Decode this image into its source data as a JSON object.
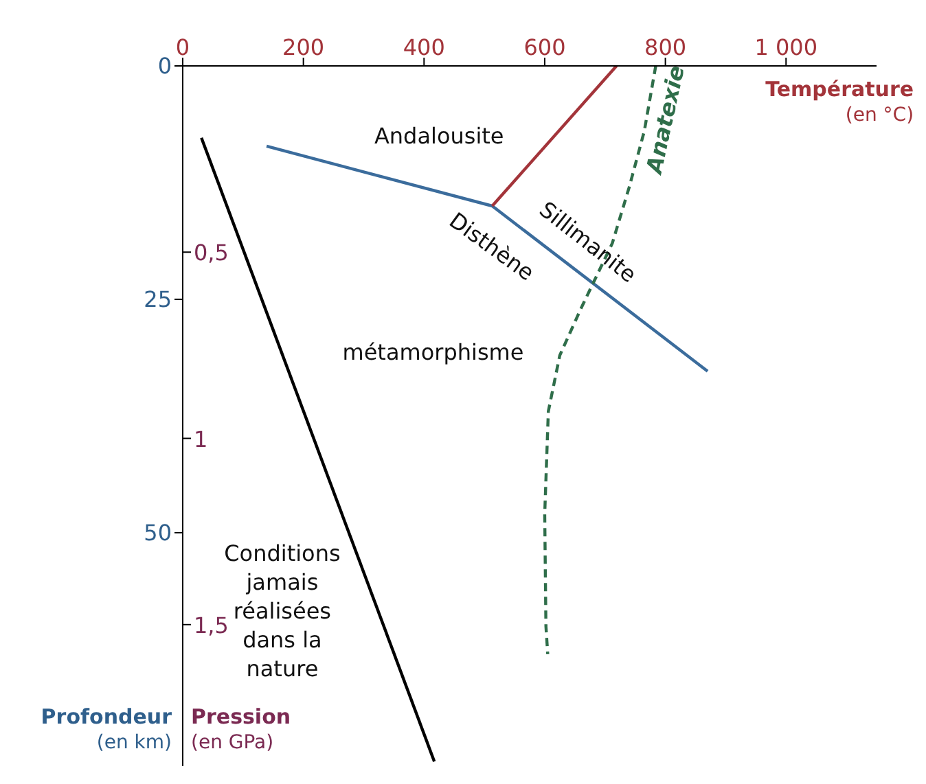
{
  "chart_data": {
    "type": "line",
    "xlabel": "Température (en °C)",
    "ylabel": "Profondeur (en km)",
    "y2label": "Pression (en GPa)",
    "xlim": [
      0,
      1150
    ],
    "xticks": [
      0,
      200,
      400,
      600,
      800,
      {
        "value": 1000,
        "label": "1 000"
      }
    ],
    "ylim": [
      75,
      0
    ],
    "yticks": [
      0,
      25,
      50
    ],
    "y2lim": [
      1.88,
      0
    ],
    "y2ticks": [
      {
        "value": 0.5,
        "label": "0,5"
      },
      1,
      {
        "value": 1.5,
        "label": "1,5"
      }
    ],
    "marker": "none",
    "series": [
      {
        "color": "#000000",
        "x": [
          31,
          417
        ],
        "values": [
          7.7,
          74.5
        ]
      },
      {
        "color": "#3b6c9c",
        "x": [
          139,
          513,
          870
        ],
        "values": [
          8.6,
          15,
          32.7
        ]
      },
      {
        "color": "#a3343a",
        "x": [
          513,
          719
        ],
        "values": [
          15,
          0
        ]
      },
      {
        "name": "Anatexie",
        "color": "#2f6e4a",
        "line_style": "dashed",
        "x": [
          784,
          765,
          740,
          712,
          660,
          625,
          606,
          600,
          602,
          605
        ],
        "values": [
          0,
          7,
          13,
          19,
          26,
          31,
          37,
          48,
          60,
          63
        ]
      }
    ],
    "annotations": [
      "Andalousite",
      "Sillimanite",
      "Disthène",
      "métamorphisme",
      "Conditions jamais réalisées dans la nature"
    ]
  }
}
